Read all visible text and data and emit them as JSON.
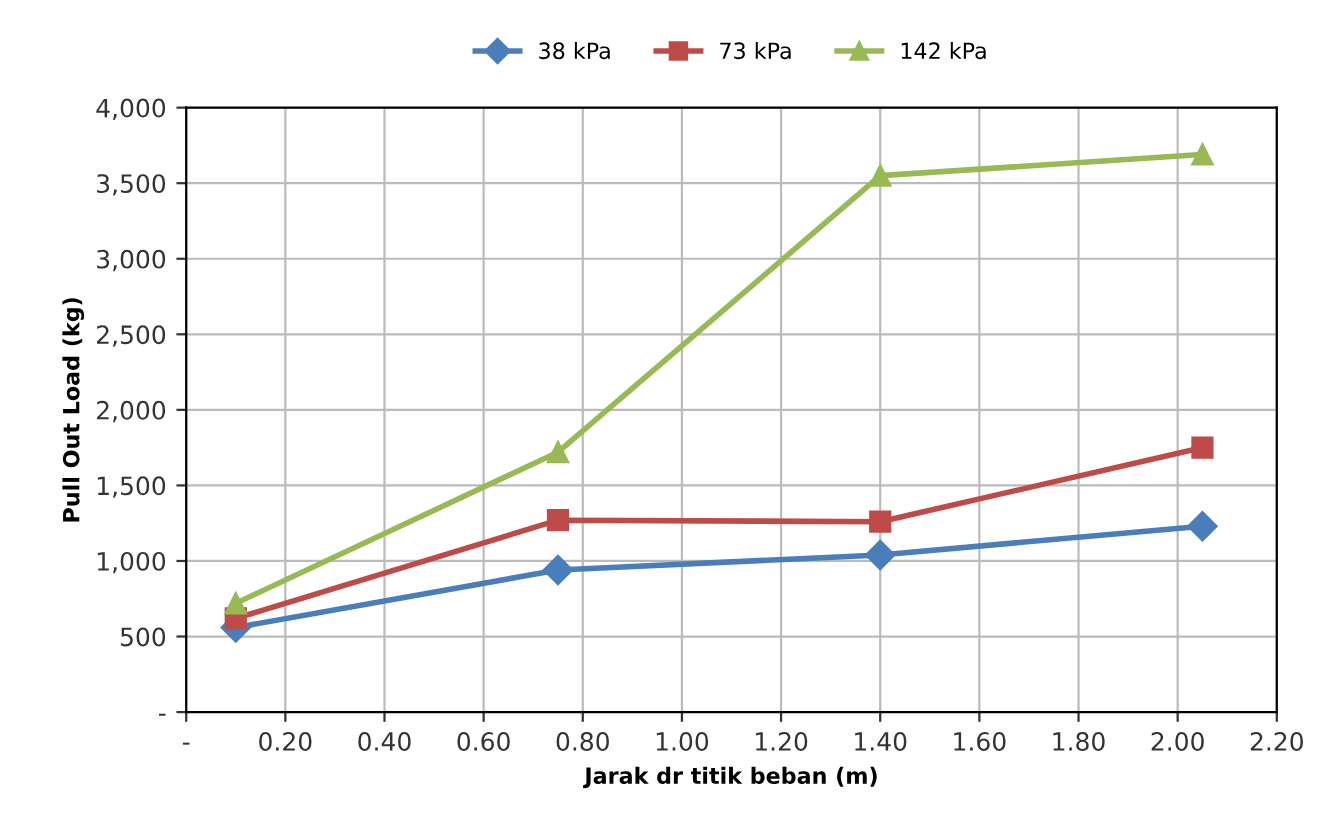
{
  "chart_data": {
    "type": "line",
    "xlabel": "Jarak dr titik beban (m)",
    "ylabel": "Pull Out Load (kg)",
    "x": [
      0.1,
      0.75,
      1.4,
      2.05
    ],
    "series": [
      {
        "name": "38 kPa",
        "color": "#4a7ebb",
        "marker": "diamond",
        "values": [
          560,
          940,
          1040,
          1230
        ]
      },
      {
        "name": "73 kPa",
        "color": "#be4b48",
        "marker": "square",
        "values": [
          620,
          1270,
          1260,
          1750
        ]
      },
      {
        "name": "142 kPa",
        "color": "#98b954",
        "marker": "triangle",
        "values": [
          720,
          1720,
          3550,
          3690
        ]
      }
    ],
    "xlim": [
      0,
      2.2
    ],
    "xticks": [
      {
        "value": 0,
        "label": "-"
      },
      {
        "value": 0.2,
        "label": "0.20"
      },
      {
        "value": 0.4,
        "label": "0.40"
      },
      {
        "value": 0.6,
        "label": "0.60"
      },
      {
        "value": 0.8,
        "label": "0.80"
      },
      {
        "value": 1.0,
        "label": "1.00"
      },
      {
        "value": 1.2,
        "label": "1.20"
      },
      {
        "value": 1.4,
        "label": "1.40"
      },
      {
        "value": 1.6,
        "label": "1.60"
      },
      {
        "value": 1.8,
        "label": "1.80"
      },
      {
        "value": 2.0,
        "label": "2.00"
      },
      {
        "value": 2.2,
        "label": "2.20"
      }
    ],
    "ylim": [
      0,
      4000
    ],
    "yticks": [
      {
        "value": 0,
        "label": "-"
      },
      {
        "value": 500,
        "label": "500"
      },
      {
        "value": 1000,
        "label": "1,000"
      },
      {
        "value": 1500,
        "label": "1,500"
      },
      {
        "value": 2000,
        "label": "2,000"
      },
      {
        "value": 2500,
        "label": "2,500"
      },
      {
        "value": 3000,
        "label": "3,000"
      },
      {
        "value": 3500,
        "label": "3,500"
      },
      {
        "value": 4000,
        "label": "4,000"
      }
    ],
    "grid": true,
    "legend": "top",
    "line_style": "solid"
  }
}
